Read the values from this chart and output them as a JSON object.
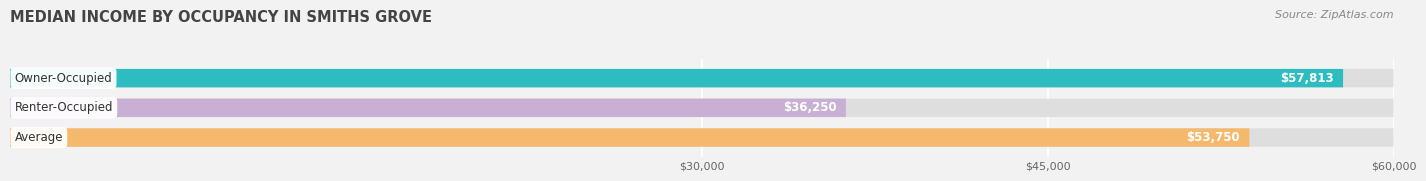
{
  "title": "MEDIAN INCOME BY OCCUPANCY IN SMITHS GROVE",
  "source": "Source: ZipAtlas.com",
  "categories": [
    "Owner-Occupied",
    "Renter-Occupied",
    "Average"
  ],
  "values": [
    57813,
    36250,
    53750
  ],
  "bar_colors": [
    "#2dbcbf",
    "#c9afd4",
    "#f5b96e"
  ],
  "value_labels": [
    "$57,813",
    "$36,250",
    "$53,750"
  ],
  "xmin": 0,
  "xmax": 60000,
  "xticks": [
    30000,
    45000,
    60000
  ],
  "xtick_labels": [
    "$30,000",
    "$45,000",
    "$60,000"
  ],
  "bar_height": 0.62,
  "background_color": "#f2f2f2",
  "bar_bg_color": "#dedede",
  "title_fontsize": 10.5,
  "source_fontsize": 8,
  "label_fontsize": 8.5,
  "value_fontsize": 8.5
}
